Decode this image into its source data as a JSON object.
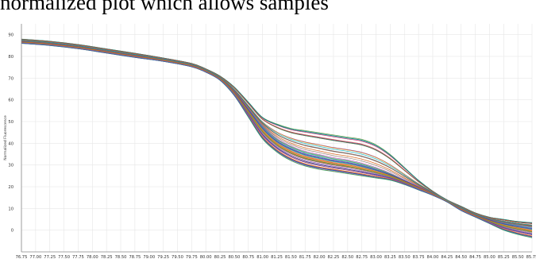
{
  "caption": "normalized plot which allows samples",
  "chart_data": {
    "type": "line",
    "title": "",
    "xlabel": "",
    "ylabel": "Normalized Fluorescence",
    "xlim": [
      76.75,
      85.75
    ],
    "ylim": [
      -10,
      95
    ],
    "x_ticks": [
      "76.75",
      "77.00",
      "77.25",
      "77.50",
      "77.75",
      "78.00",
      "78.25",
      "78.50",
      "78.75",
      "79.00",
      "79.25",
      "79.50",
      "79.75",
      "80.00",
      "80.25",
      "80.50",
      "80.75",
      "81.00",
      "81.25",
      "81.50",
      "81.75",
      "82.00",
      "82.25",
      "82.50",
      "82.75",
      "83.00",
      "83.25",
      "83.50",
      "83.75",
      "84.00",
      "84.25",
      "84.50",
      "84.75",
      "85.00",
      "85.25",
      "85.50",
      "85.75"
    ],
    "y_ticks": [
      "0",
      "10",
      "20",
      "30",
      "40",
      "50",
      "60",
      "70",
      "80",
      "90"
    ],
    "grid": true,
    "legend": "none",
    "series_count": 48,
    "x": [
      76.75,
      77.25,
      77.75,
      78.25,
      78.75,
      79.25,
      79.75,
      80.0,
      80.25,
      80.5,
      80.75,
      81.0,
      81.25,
      81.5,
      81.75,
      82.0,
      82.25,
      82.5,
      82.75,
      83.0,
      83.25,
      83.5,
      83.75,
      84.0,
      84.25,
      84.5,
      84.75,
      85.0,
      85.25,
      85.5,
      85.75
    ],
    "typical_curve": [
      87,
      86,
      84.5,
      82.5,
      80.5,
      78.5,
      76,
      73.5,
      70,
      64,
      56,
      48,
      42,
      38.5,
      36,
      34.5,
      33,
      32,
      30.5,
      28.5,
      26,
      23,
      20,
      17,
      13.5,
      10,
      7,
      5,
      3.5,
      2.5,
      1.5
    ],
    "envelope_upper": [
      88,
      87,
      85.5,
      83.5,
      81.5,
      79.3,
      76.8,
      74.3,
      71,
      66,
      59,
      52,
      49,
      47,
      46,
      45,
      44,
      43,
      42,
      39.5,
      35,
      29,
      23,
      18,
      14,
      11,
      8,
      6,
      5,
      4,
      3.5
    ],
    "envelope_lower": [
      86,
      85,
      83.5,
      81.5,
      79.5,
      77.7,
      75.2,
      72.7,
      69,
      62,
      52,
      42,
      36,
      32,
      29.5,
      28,
      27,
      26,
      25,
      24,
      23,
      21,
      18.5,
      16,
      13,
      9,
      6,
      3,
      0,
      -2,
      -3.5
    ]
  }
}
